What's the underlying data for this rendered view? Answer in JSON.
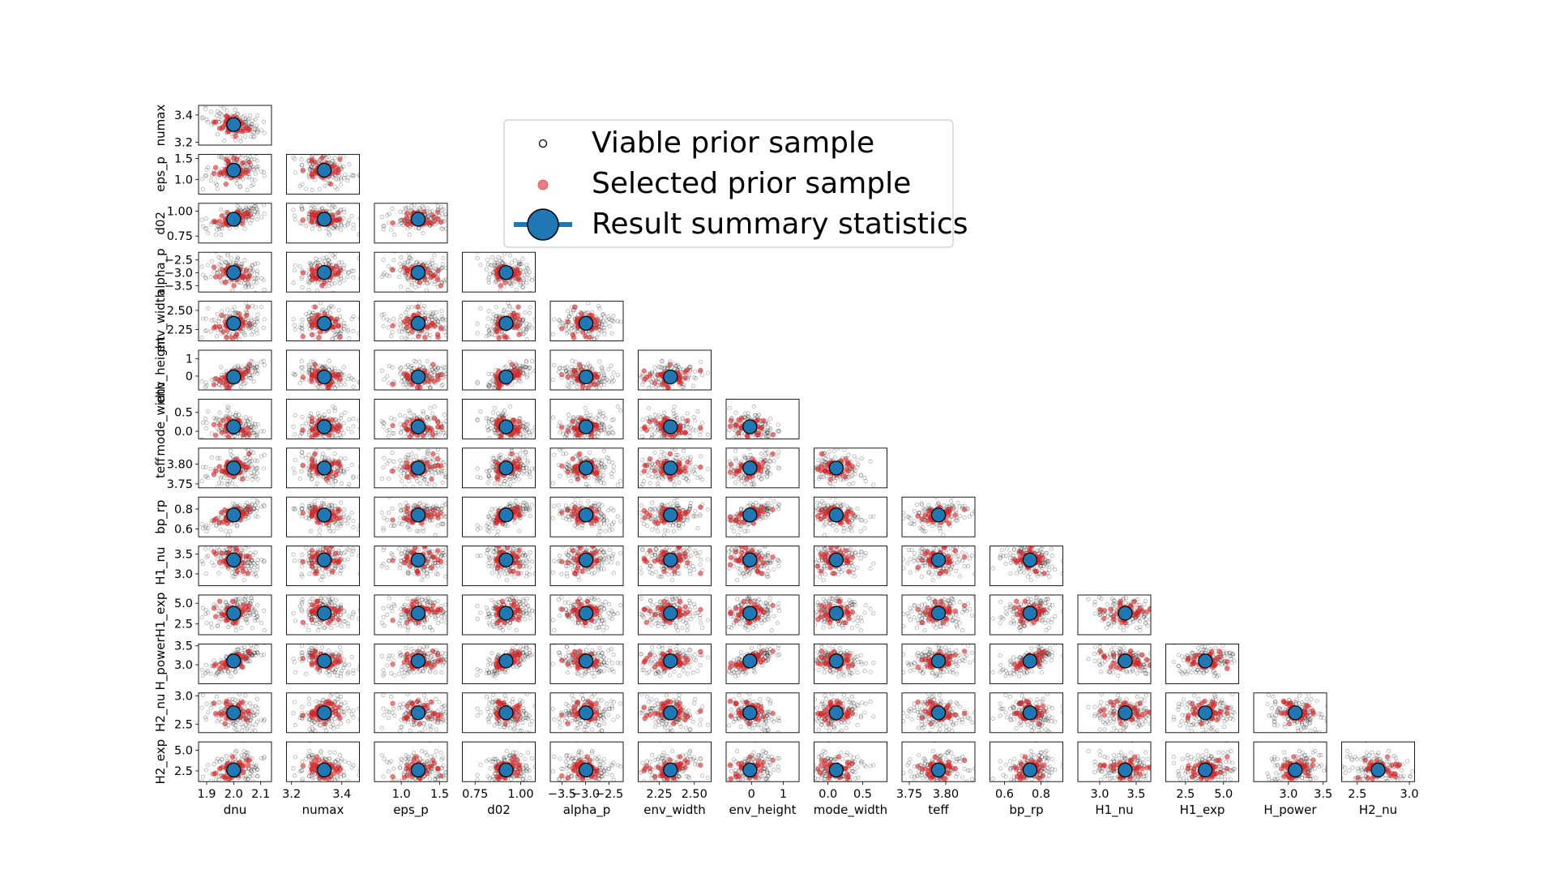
{
  "chart_data": {
    "type": "scatter",
    "subtype": "corner-plot",
    "parameters": [
      "dnu",
      "numax",
      "eps_p",
      "d02",
      "alpha_p",
      "env_width",
      "env_height",
      "mode_width",
      "teff",
      "bp_rp",
      "H1_nu",
      "H1_exp",
      "H_power",
      "H2_nu"
    ],
    "row_parameters": [
      "numax",
      "eps_p",
      "d02",
      "alpha_p",
      "env_width",
      "env_height",
      "mode_width",
      "teff",
      "bp_rp",
      "H1_nu",
      "H1_exp",
      "H_power",
      "H2_nu",
      "H2_exp"
    ],
    "ranges": {
      "dnu": [
        1.87,
        2.14
      ],
      "numax": [
        3.18,
        3.47
      ],
      "eps_p": [
        0.65,
        1.6
      ],
      "d02": [
        0.68,
        1.08
      ],
      "alpha_p": [
        -3.75,
        -2.2
      ],
      "env_width": [
        2.1,
        2.62
      ],
      "env_height": [
        -0.8,
        1.5
      ],
      "mode_width": [
        -0.2,
        0.85
      ],
      "teff": [
        3.74,
        3.84
      ],
      "bp_rp": [
        0.52,
        0.92
      ],
      "H1_nu": [
        2.7,
        3.7
      ],
      "H1_exp": [
        1.2,
        6.0
      ],
      "H_power": [
        2.5,
        3.55
      ],
      "H2_nu": [
        2.35,
        3.05
      ],
      "H2_exp": [
        1.2,
        6.0
      ]
    },
    "x_ticks": {
      "dnu": [
        "1.9",
        "2.0",
        "2.1"
      ],
      "numax": [
        "3.2",
        "3.4"
      ],
      "eps_p": [
        "1.0",
        "1.5"
      ],
      "d02": [
        "0.75",
        "1.00"
      ],
      "alpha_p": [
        "−3.5",
        "−3.0",
        "−2.5"
      ],
      "env_width": [
        "2.25",
        "2.50"
      ],
      "env_height": [
        "0",
        "1"
      ],
      "mode_width": [
        "0.0",
        "0.5"
      ],
      "teff": [
        "3.75",
        "3.80"
      ],
      "bp_rp": [
        "0.6",
        "0.8"
      ],
      "H1_nu": [
        "3.0",
        "3.5"
      ],
      "H1_exp": [
        "2.5",
        "5.0"
      ],
      "H_power": [
        "3.0",
        "3.5"
      ],
      "H2_nu": [
        "2.5",
        "3.0"
      ]
    },
    "y_ticks": {
      "numax": [
        "3.2",
        "3.4"
      ],
      "eps_p": [
        "1.0",
        "1.5"
      ],
      "d02": [
        "0.75",
        "1.00"
      ],
      "alpha_p": [
        "−3.5",
        "−3.0",
        "−2.5"
      ],
      "env_width": [
        "2.25",
        "2.50"
      ],
      "env_height": [
        "0",
        "1"
      ],
      "mode_width": [
        "0.0",
        "0.5"
      ],
      "teff": [
        "3.75",
        "3.80"
      ],
      "bp_rp": [
        "0.6",
        "0.8"
      ],
      "H1_nu": [
        "3.0",
        "3.5"
      ],
      "H1_exp": [
        "2.5",
        "5.0"
      ],
      "H_power": [
        "3.0",
        "3.5"
      ],
      "H2_nu": [
        "2.5",
        "3.0"
      ],
      "H2_exp": [
        "2.5",
        "5.0"
      ]
    },
    "result_summary": {
      "dnu": 2.0,
      "numax": 3.33,
      "eps_p": 1.22,
      "d02": 0.92,
      "alpha_p": -2.99,
      "env_width": 2.33,
      "env_height": -0.05,
      "mode_width": 0.12,
      "teff": 3.79,
      "bp_rp": 0.74,
      "H1_nu": 3.35,
      "H1_exp": 3.8,
      "H_power": 3.1,
      "H2_nu": 2.7,
      "H2_exp": 2.6
    },
    "series": [
      {
        "name": "Viable prior sample",
        "color": "#000000",
        "marker": "open-circle"
      },
      {
        "name": "Selected prior sample",
        "color": "#d62728",
        "marker": "filled-circle"
      },
      {
        "name": "Result summary statistics",
        "color": "#1f77b4",
        "marker": "large-circle"
      }
    ],
    "legend_position": "upper-center",
    "grid": false
  }
}
